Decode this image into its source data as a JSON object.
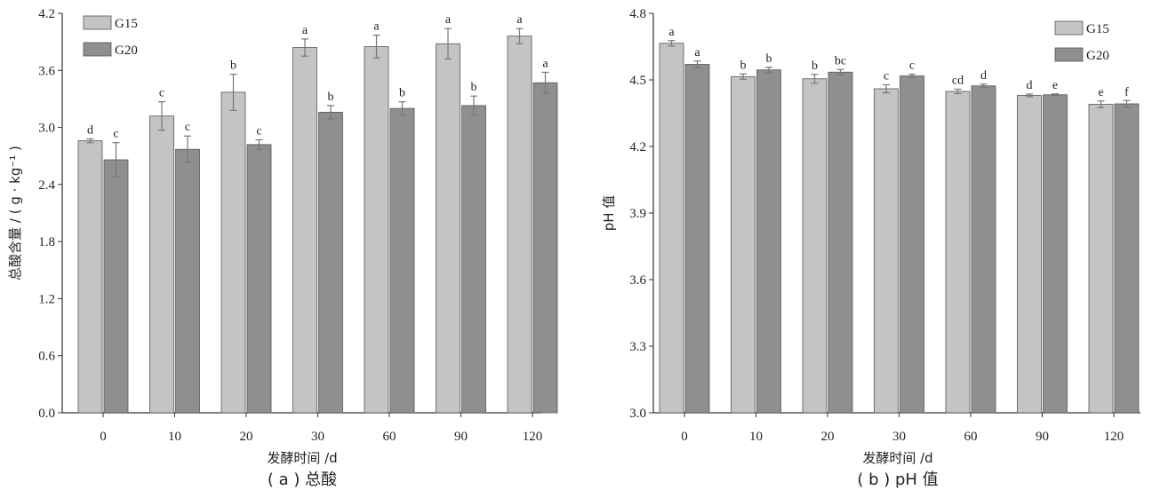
{
  "chart_data": [
    {
      "type": "bar",
      "categories": [
        "0",
        "10",
        "20",
        "30",
        "60",
        "90",
        "120"
      ],
      "series": [
        {
          "name": "G15",
          "color": "#c4c4c4",
          "values": [
            2.86,
            3.12,
            3.37,
            3.84,
            3.85,
            3.88,
            3.96
          ],
          "errors": [
            0.02,
            0.15,
            0.19,
            0.09,
            0.12,
            0.16,
            0.08
          ],
          "labels": [
            "d",
            "c",
            "b",
            "a",
            "a",
            "a",
            "a"
          ]
        },
        {
          "name": "G20",
          "color": "#8f8f8f",
          "values": [
            2.66,
            2.77,
            2.82,
            3.16,
            3.2,
            3.23,
            3.47
          ],
          "errors": [
            0.18,
            0.14,
            0.05,
            0.07,
            0.07,
            0.1,
            0.11
          ],
          "labels": [
            "c",
            "c",
            "c",
            "b",
            "b",
            "b",
            "a"
          ]
        }
      ],
      "ylim": [
        0,
        4.2
      ],
      "yticks": [
        "0.0",
        "0.6",
        "1.2",
        "1.8",
        "2.4",
        "3.0",
        "3.6",
        "4.2"
      ],
      "ylabel": "总酸含量 / ( g · kg⁻¹ )",
      "xlabel": "发酵时间 /d",
      "caption": "( a ) 总酸",
      "legend_position": "top-left",
      "grid": false
    },
    {
      "type": "bar",
      "categories": [
        "0",
        "10",
        "20",
        "30",
        "60",
        "90",
        "120"
      ],
      "series": [
        {
          "name": "G15",
          "color": "#c4c4c4",
          "values": [
            4.665,
            4.515,
            4.505,
            4.46,
            4.448,
            4.43,
            4.39
          ],
          "errors": [
            0.012,
            0.012,
            0.02,
            0.018,
            0.01,
            0.006,
            0.015
          ],
          "labels": [
            "a",
            "b",
            "b",
            "c",
            "cd",
            "d",
            "e"
          ]
        },
        {
          "name": "G20",
          "color": "#8f8f8f",
          "values": [
            4.57,
            4.545,
            4.535,
            4.518,
            4.473,
            4.433,
            4.392
          ],
          "errors": [
            0.015,
            0.012,
            0.012,
            0.008,
            0.008,
            0.004,
            0.015
          ],
          "labels": [
            "a",
            "b",
            "bc",
            "c",
            "d",
            "e",
            "f"
          ]
        }
      ],
      "ylim": [
        3.0,
        4.8
      ],
      "yticks": [
        "3.0",
        "3.3",
        "3.6",
        "3.9",
        "4.2",
        "4.5",
        "4.8"
      ],
      "ylabel": "pH 值",
      "xlabel": "发酵时间 /d",
      "caption": "( b ) pH 值",
      "legend_position": "top-right",
      "grid": false
    }
  ]
}
